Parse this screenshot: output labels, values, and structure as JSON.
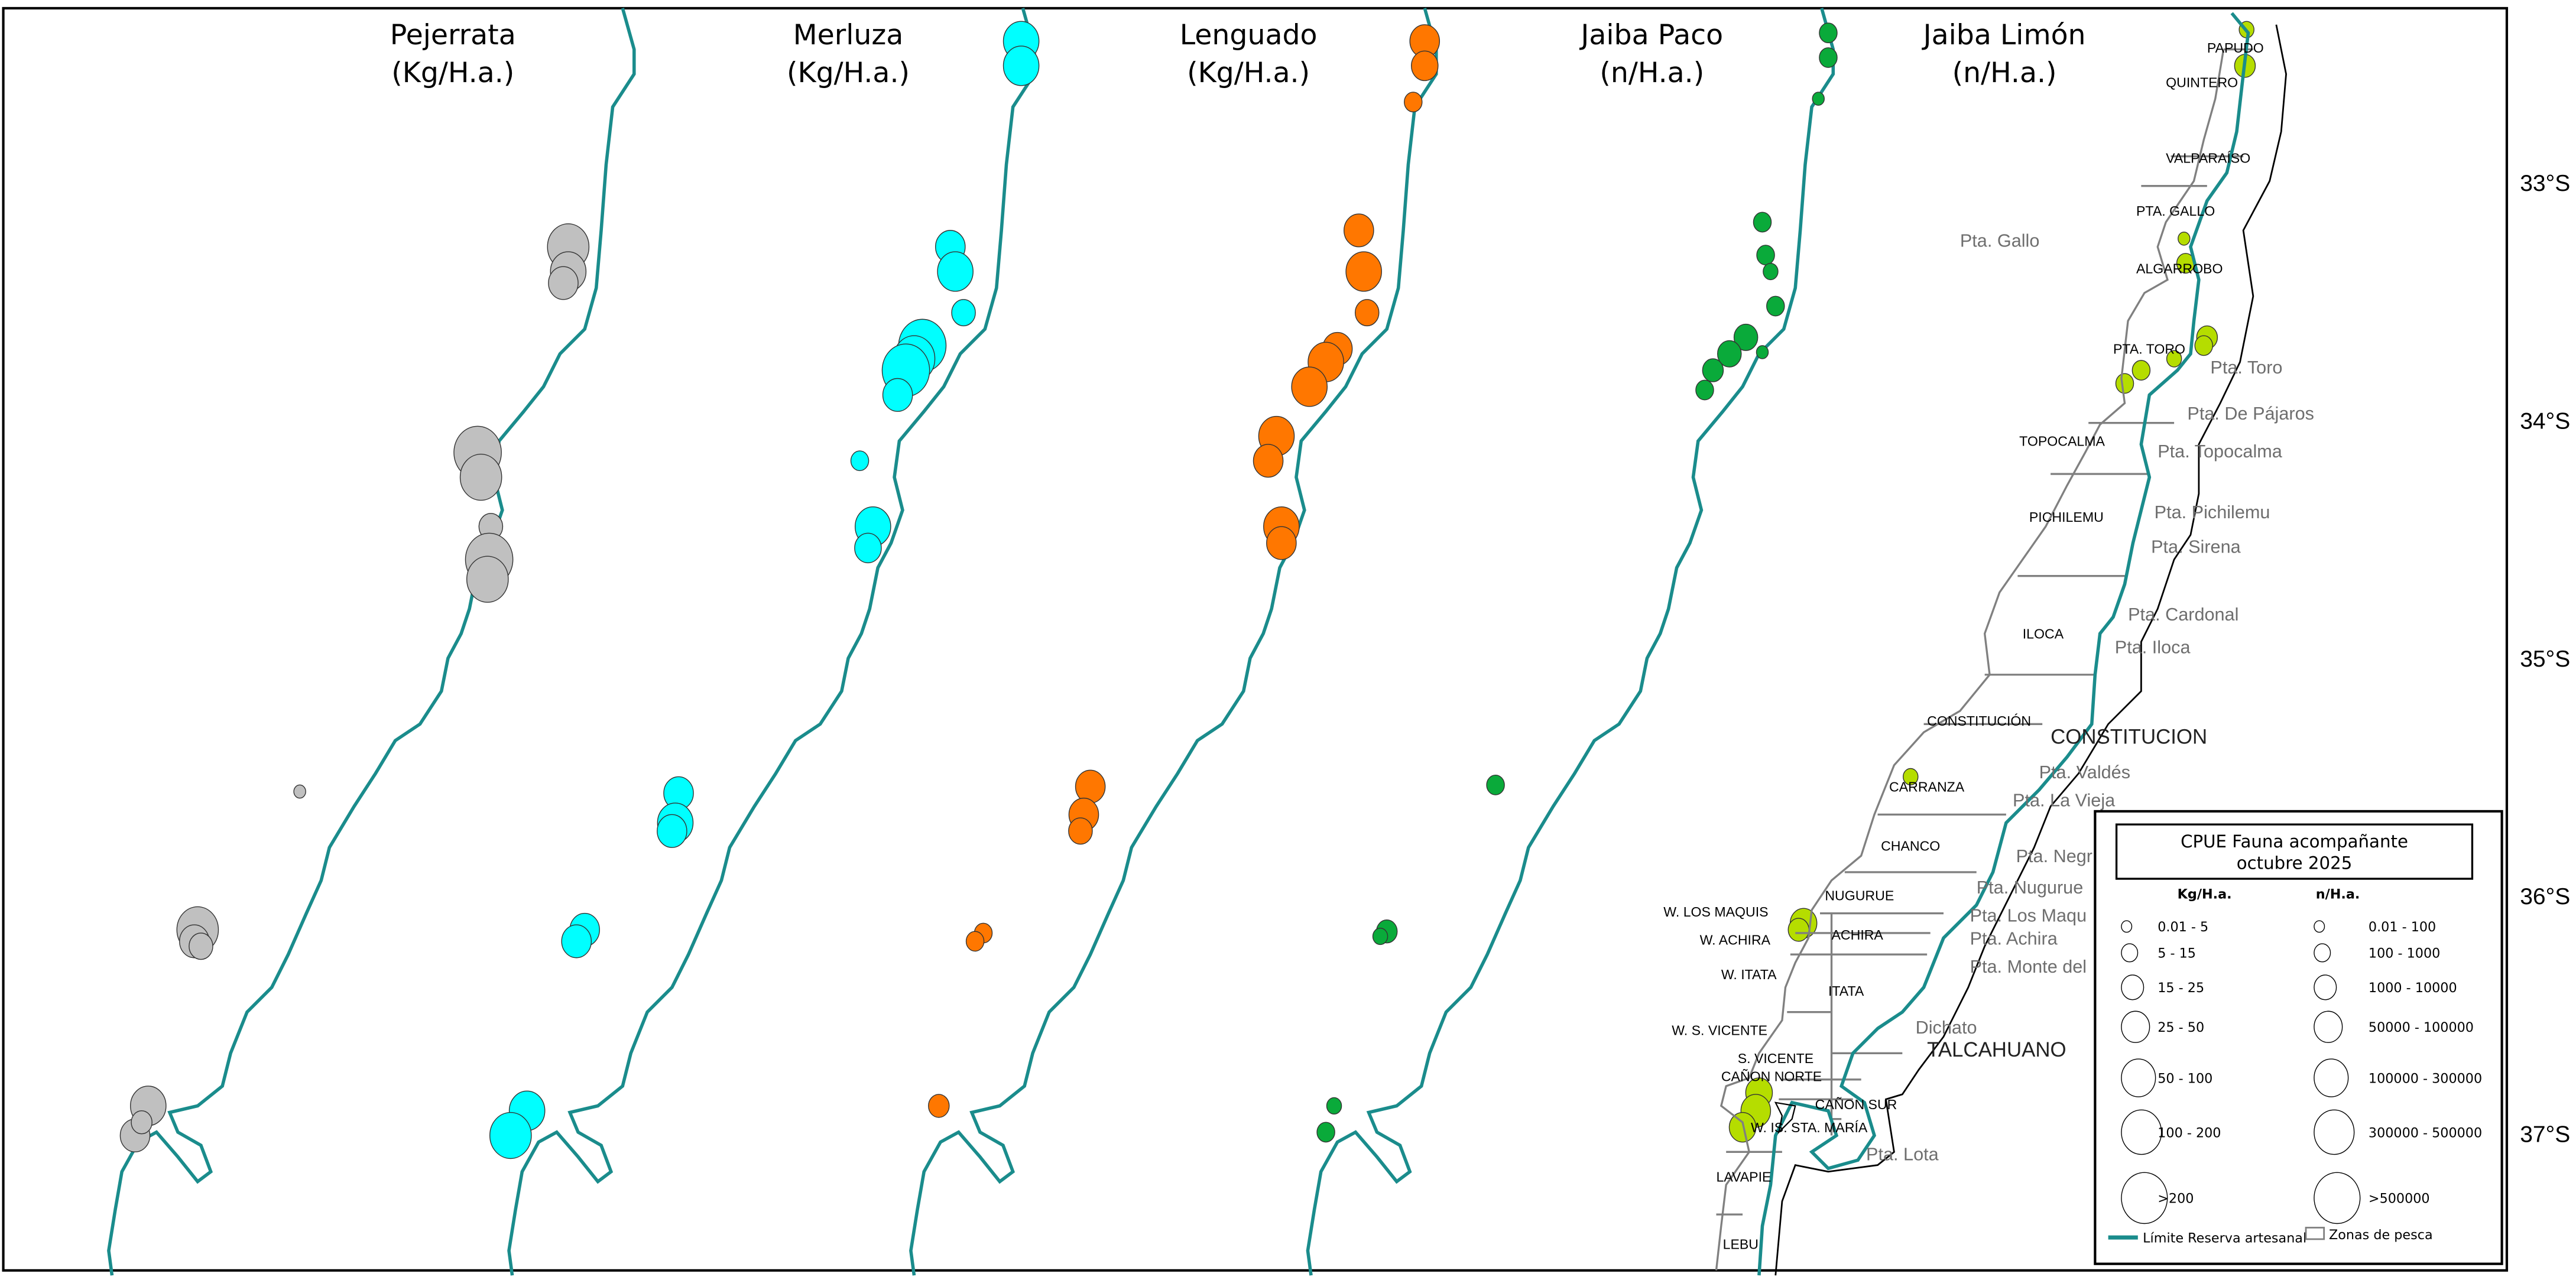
{
  "panels": [
    {
      "name": "Pejerrata",
      "unit": "(Kg/H.a.)",
      "color": "#c0c0c0"
    },
    {
      "name": "Merluza",
      "unit": "(Kg/H.a.)",
      "color": "#00ffff"
    },
    {
      "name": "Lenguado",
      "unit": "(Kg/H.a.)",
      "color": "#ff7700"
    },
    {
      "name": "Jaiba Paco",
      "unit": "(n/H.a.)",
      "color": "#0aaa3a"
    },
    {
      "name": "Jaiba Limón",
      "unit": "(n/H.a.)",
      "color": "#b5dd00"
    }
  ],
  "colors": {
    "reserve_line": "#1a8c8c",
    "zones": "#808080",
    "coast": "#000000",
    "bubble_stroke": "#333333"
  },
  "latitudes": [
    "33°S",
    "34°S",
    "35°S",
    "36°S",
    "37°S"
  ],
  "zone_labels": [
    "PAPUDO",
    "QUINTERO",
    "VALPARAÍSO",
    "PTA. GALLO",
    "ALGARROBO",
    "PTA. TORO",
    "TOPOCALMA",
    "PICHILEMU",
    "ILOCA",
    "CONSTITUCIÓN",
    "CARRANZA",
    "CHANCO",
    "NUGURUE",
    "W. LOS MAQUIS",
    "ACHIRA",
    "W. ACHIRA",
    "W. ITATA",
    "ITATA",
    "W. S. VICENTE",
    "S. VICENTE",
    "CAÑON NORTE",
    "CAÑON SUR",
    "W. IS. STA. MARÍA",
    "LAVAPIE",
    "LEBU"
  ],
  "place_labels": [
    "Pta. Gallo",
    "Pta. Toro",
    "Pta. De Pájaros",
    "Pta. Topocalma",
    "Pta. Pichilemu",
    "Pta. Sirena",
    "Pta. Cardonal",
    "Pta. Iloca",
    "Pta. Valdés",
    "Pta. La Vieja",
    "Pta. Negr",
    "Pta. Nugurue",
    "Pta. Los Maqu",
    "Pta. Achira",
    "Pta. Monte del",
    "Dichato",
    "Pta. Lota"
  ],
  "city_labels": [
    "CONSTITUCION",
    "TALCAHUANO"
  ],
  "legend": {
    "title_line1": "CPUE Fauna acompañante",
    "title_line2": "octubre 2025",
    "kg_header": "Kg/H.a.",
    "n_header": "n/H.a.",
    "kg_classes": [
      "0.01 - 5",
      "5 - 15",
      "15 - 25",
      "25 - 50",
      "50 - 100",
      "100 - 200",
      ">200"
    ],
    "n_classes": [
      "0.01 - 100",
      "100 - 1000",
      "1000 - 10000",
      "50000 - 100000",
      "100000 - 300000",
      "300000 - 500000",
      ">500000"
    ],
    "line_label": "Límite Reserva artesanal",
    "zones_label": "Zonas de pesca"
  }
}
